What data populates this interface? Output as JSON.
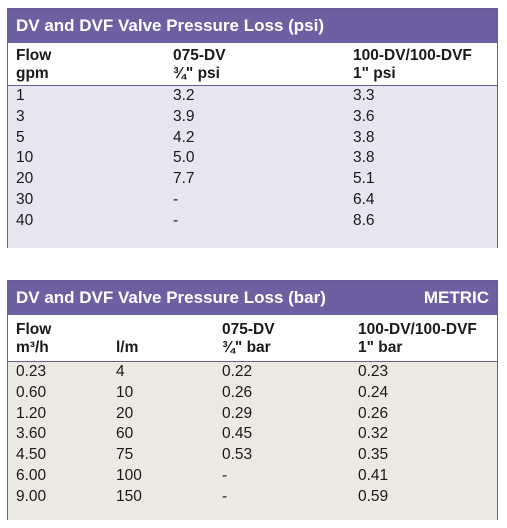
{
  "psi_table": {
    "title": "DV and DVF Valve Pressure Loss (psi)",
    "headers": [
      {
        "line1": "Flow",
        "line2": "gpm"
      },
      {
        "line1": "075-DV",
        "line2": "¾\" psi"
      },
      {
        "line1": "100-DV/100-DVF",
        "line2": "1\" psi"
      }
    ],
    "rows": [
      [
        "1",
        "3.2",
        "3.3"
      ],
      [
        "3",
        "3.9",
        "3.6"
      ],
      [
        "5",
        "4.2",
        "3.8"
      ],
      [
        "10",
        "5.0",
        "3.8"
      ],
      [
        "20",
        "7.7",
        "5.1"
      ],
      [
        "30",
        "-",
        "6.4"
      ],
      [
        "40",
        "-",
        "8.6"
      ]
    ]
  },
  "bar_table": {
    "title": "DV and DVF Valve Pressure Loss (bar)",
    "badge": "METRIC",
    "headers": [
      {
        "line1": "Flow",
        "line2": "m³/h"
      },
      {
        "line1": "",
        "line2": "l/m"
      },
      {
        "line1": "075-DV",
        "line2": "¾\" bar"
      },
      {
        "line1": "100-DV/100-DVF",
        "line2": "1\" bar"
      }
    ],
    "rows": [
      [
        "0.23",
        "4",
        "0.22",
        "0.23"
      ],
      [
        "0.60",
        "10",
        "0.26",
        "0.24"
      ],
      [
        "1.20",
        "20",
        "0.29",
        "0.26"
      ],
      [
        "3.60",
        "60",
        "0.45",
        "0.32"
      ],
      [
        "4.50",
        "75",
        "0.53",
        "0.35"
      ],
      [
        "6.00",
        "100",
        "-",
        "0.41"
      ],
      [
        "9.00",
        "150",
        "-",
        "0.59"
      ]
    ]
  },
  "colors": {
    "title_bg": "#6e5fa3",
    "psi_row_bg": "#e9e4f1",
    "bar_row_bg": "#ece9e2",
    "border": "#6b5a9a"
  }
}
